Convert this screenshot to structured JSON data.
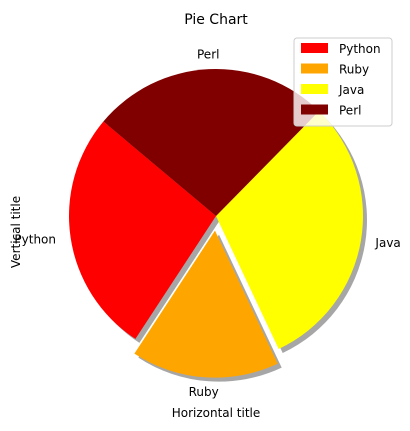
{
  "chart_data": {
    "type": "pie",
    "title": "Pie Chart",
    "xlabel": "Horizontal title",
    "ylabel": "Vertical title",
    "categories": [
      "Python",
      "Ruby",
      "Java",
      "Perl"
    ],
    "values": [
      215,
      130,
      245,
      210
    ],
    "explode": [
      0,
      0.1,
      0,
      0
    ],
    "shadow": true,
    "start_angle_deg": 140,
    "colors": [
      "#ff0000",
      "#ffa500",
      "#ffff00",
      "#800000"
    ],
    "legend": {
      "position": "upper-right",
      "entries": [
        "Python",
        "Ruby",
        "Java",
        "Perl"
      ]
    }
  }
}
